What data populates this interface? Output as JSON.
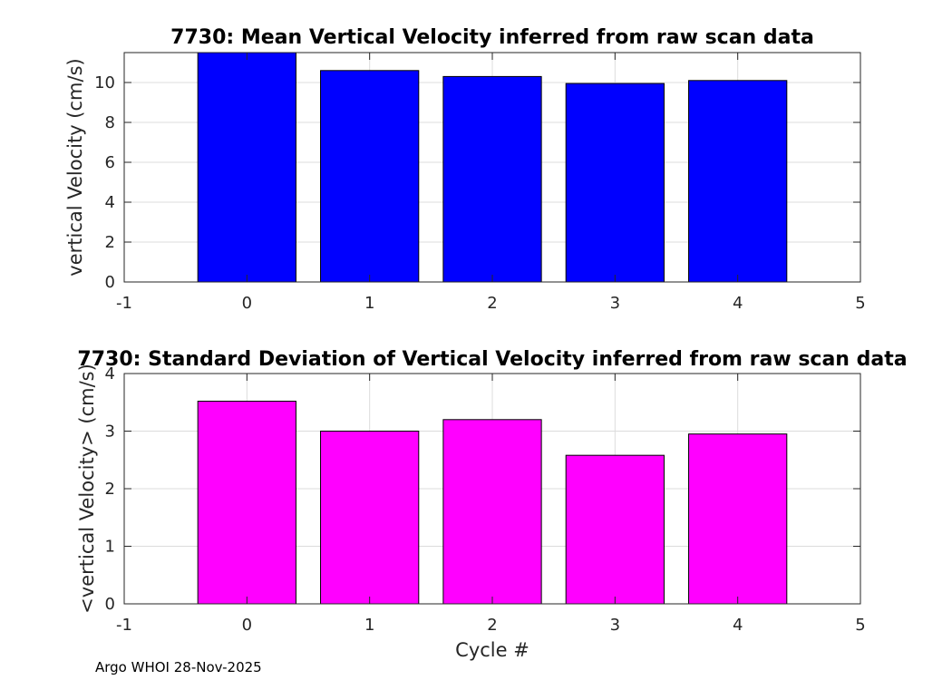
{
  "chart_data": [
    {
      "type": "bar",
      "title": "7730: Mean Vertical Velocity inferred from raw scan data",
      "xlabel": "",
      "ylabel": "vertical Velocity (cm/s)",
      "categories": [
        0,
        1,
        2,
        3,
        4
      ],
      "values": [
        11.6,
        10.6,
        10.3,
        9.95,
        10.1
      ],
      "bar_color": "#0000ff",
      "xlim": [
        -1,
        5
      ],
      "ylim": [
        0,
        11.5
      ],
      "xticks": [
        -1,
        0,
        1,
        2,
        3,
        4,
        5
      ],
      "yticks": [
        0,
        2,
        4,
        6,
        8,
        10
      ],
      "grid": true
    },
    {
      "type": "bar",
      "title": "7730: Standard Deviation of Vertical Velocity inferred from raw scan data",
      "xlabel": "Cycle #",
      "ylabel": "<vertical Velocity> (cm/s)",
      "categories": [
        0,
        1,
        2,
        3,
        4
      ],
      "values": [
        3.52,
        3.0,
        3.2,
        2.58,
        2.95
      ],
      "bar_color": "#ff00ff",
      "xlim": [
        -1,
        5
      ],
      "ylim": [
        0,
        4
      ],
      "xticks": [
        -1,
        0,
        1,
        2,
        3,
        4,
        5
      ],
      "yticks": [
        0,
        1,
        2,
        3,
        4
      ],
      "grid": true
    }
  ],
  "footer": {
    "text": "Argo WHOI 28-Nov-2025"
  }
}
